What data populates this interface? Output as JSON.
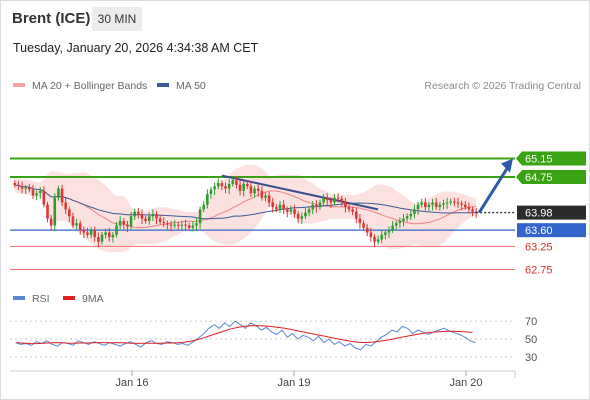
{
  "header": {
    "instrument": "Brent (ICE)",
    "timeframe": "30 MIN",
    "datetime": "Tuesday, January 20, 2026 4:34:38 AM CET"
  },
  "legend": {
    "ma20_bb": "MA 20 + Bollinger Bands",
    "ma50": "MA 50",
    "copyright": "Research © 2026 Trading Central",
    "rsi": "RSI",
    "rsi_ma": "9MA"
  },
  "colors": {
    "resistance": "#3aa313",
    "support": "#3366cc",
    "secondary_support": "#f07070",
    "bull_candle": "#2e9d2e",
    "bear_candle": "#d93838",
    "bollinger_fill": "#fbdcdc",
    "ma20": "#f08080",
    "ma50": "#3b5998",
    "current_price_box": "#2b2b2b",
    "forecast_arrow": "#2d5aa8",
    "rsi": "#5b86d8",
    "rsi_ma": "#dd2222"
  },
  "chart_data": [
    {
      "type": "line",
      "subtype": "candlestick",
      "title": "",
      "y_range": [
        62.5,
        66.2
      ],
      "x_ticks": [
        "Jan 16",
        "Jan 19",
        "Jan 20"
      ],
      "levels": [
        {
          "label": "65.15",
          "value": 65.15,
          "role": "resistance"
        },
        {
          "label": "64.75",
          "value": 64.75,
          "role": "resistance"
        },
        {
          "label": "63.98",
          "value": 63.98,
          "role": "current"
        },
        {
          "label": "63.60",
          "value": 63.6,
          "role": "support"
        },
        {
          "label": "63.25",
          "value": 63.25,
          "role": "secondary_support"
        },
        {
          "label": "62.75",
          "value": 62.75,
          "role": "secondary_support"
        }
      ],
      "candles_close": [
        64.58,
        64.55,
        64.5,
        64.52,
        64.48,
        64.35,
        64.4,
        64.45,
        64.15,
        63.85,
        63.7,
        64.3,
        64.5,
        64.2,
        64.05,
        63.9,
        63.7,
        63.75,
        63.6,
        63.55,
        63.5,
        63.6,
        63.45,
        63.35,
        63.5,
        63.55,
        63.45,
        63.5,
        63.7,
        63.8,
        63.72,
        63.68,
        63.9,
        64.0,
        63.95,
        63.85,
        63.8,
        63.9,
        63.95,
        63.85,
        63.78,
        63.75,
        63.72,
        63.7,
        63.72,
        63.7,
        63.72,
        63.7,
        63.65,
        63.7,
        63.75,
        64.05,
        64.15,
        64.38,
        64.48,
        64.55,
        64.62,
        64.55,
        64.5,
        64.6,
        64.68,
        64.58,
        64.45,
        64.6,
        64.55,
        64.4,
        64.5,
        64.45,
        64.3,
        64.35,
        64.2,
        64.1,
        64.05,
        64.15,
        64.05,
        64.0,
        64.05,
        63.95,
        63.85,
        63.9,
        63.98,
        64.05,
        64.15,
        64.1,
        64.2,
        64.3,
        64.25,
        64.2,
        64.3,
        64.28,
        64.22,
        64.1,
        64.05,
        64.0,
        63.85,
        63.75,
        63.65,
        63.55,
        63.45,
        63.35,
        63.4,
        63.5,
        63.55,
        63.6,
        63.7,
        63.75,
        63.8,
        63.85,
        63.9,
        63.95,
        64.05,
        64.15,
        64.2,
        64.1,
        64.15,
        64.2,
        64.1,
        64.15,
        64.18,
        64.2,
        64.22,
        64.2,
        64.18,
        64.15,
        64.1,
        64.05,
        64.0,
        63.98
      ],
      "forecast_target": 65.15
    },
    {
      "type": "line",
      "title": "",
      "y_range": [
        22,
        78
      ],
      "y_ticks": [
        30,
        50,
        70
      ],
      "series": [
        {
          "name": "RSI",
          "values": [
            46,
            44,
            45,
            43,
            47,
            45,
            48,
            44,
            42,
            46,
            45,
            43,
            48,
            46,
            44,
            47,
            45,
            43,
            46,
            44,
            42,
            45,
            47,
            44,
            41,
            46,
            48,
            45,
            44,
            47,
            46,
            44,
            45,
            43,
            47,
            51,
            56,
            62,
            66,
            62,
            68,
            64,
            70,
            66,
            62,
            68,
            65,
            60,
            63,
            58,
            55,
            60,
            52,
            56,
            50,
            54,
            52,
            48,
            53,
            46,
            50,
            44,
            47,
            42,
            45,
            40,
            38,
            44,
            42,
            47,
            52,
            55,
            60,
            58,
            64,
            62,
            56,
            60,
            58,
            55,
            58,
            60,
            62,
            59,
            57,
            55,
            52,
            48,
            46
          ]
        },
        {
          "name": "9MA",
          "values": [
            46,
            45.4,
            45,
            44.9,
            45.2,
            45.6,
            46,
            45.8,
            45.2,
            45.4,
            45.5,
            45.6,
            46,
            46,
            45.8,
            46,
            45.8,
            45.3,
            45.1,
            45.2,
            45.3,
            45.2,
            45.4,
            45.5,
            45.8,
            46.4,
            47.5,
            49.2,
            51.5,
            54,
            56.6,
            59,
            61.4,
            63,
            64.3,
            64.8,
            65,
            64.6,
            64,
            63,
            62,
            60.6,
            59,
            57.6,
            56,
            54.5,
            53,
            51.5,
            50,
            48.5,
            47.2,
            46.4,
            46,
            46.5,
            47.3,
            48.4,
            49.8,
            51.4,
            52.8,
            54.3,
            55.6,
            56.8,
            57.6,
            58.2,
            58.5,
            58.6,
            58.4,
            58,
            57.4
          ]
        }
      ]
    }
  ]
}
